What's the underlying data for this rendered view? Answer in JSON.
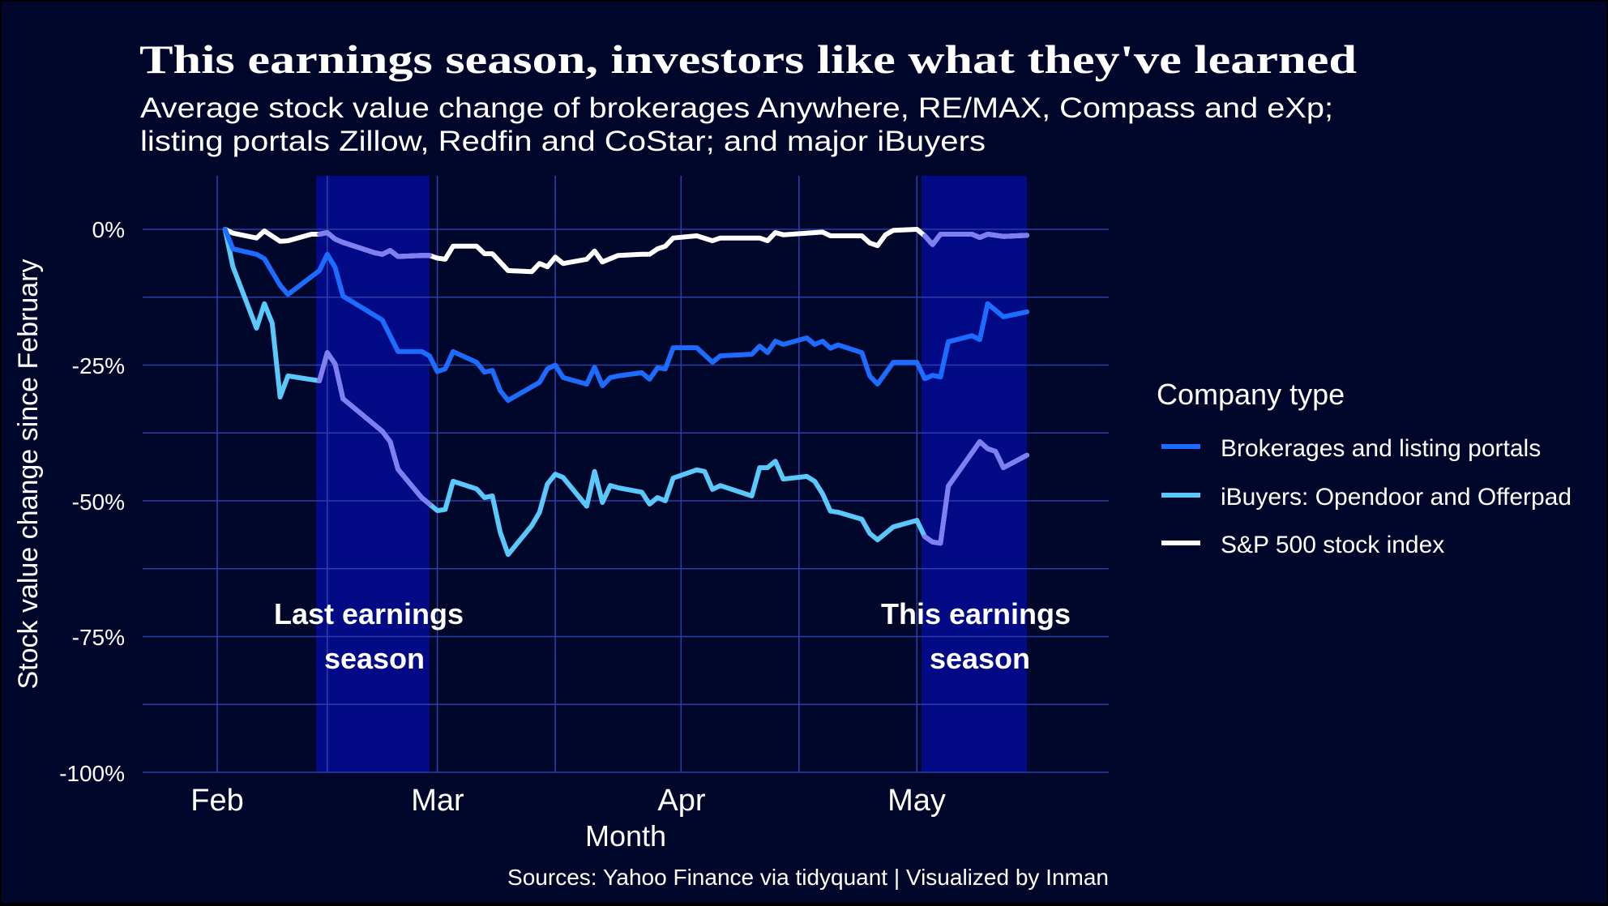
{
  "header": {
    "title": "This earnings season, investors like what they've learned",
    "subtitle_line1": "Average stock value change of brokerages Anywhere, RE/MAX, Compass and eXp;",
    "subtitle_line2": "listing portals Zillow, Redfin and CoStar; and major iBuyers"
  },
  "axes": {
    "y_title": "Stock value change since February",
    "x_title": "Month",
    "y_ticks": [
      "0%",
      "-25%",
      "-50%",
      "-75%",
      "-100%"
    ],
    "x_ticks": [
      "Feb",
      "Mar",
      "Apr",
      "May"
    ]
  },
  "annotations": {
    "last_line1": "Last earnings",
    "last_line2": "season",
    "this_line1": "This earnings",
    "this_line2": "season"
  },
  "legend": {
    "title": "Company type",
    "items": [
      {
        "label": "Brokerages and listing portals",
        "color": "#1e6cff"
      },
      {
        "label": "iBuyers: Opendoor and Offerpad",
        "color": "#5ac8fa"
      },
      {
        "label": "S&P 500 stock index",
        "color": "#ffffff"
      }
    ]
  },
  "caption": "Sources: Yahoo Finance via tidyquant | Visualized by Inman",
  "colors": {
    "background": "#01062b",
    "band": "#020a85",
    "grid": "#2a3ea6",
    "in_band_overlay": "#7f7ff0",
    "brokerages": "#1e6cff",
    "ibuyers": "#5ac8fa",
    "sp500": "#ffffff"
  },
  "chart_data": {
    "type": "line",
    "title": "This earnings season, investors like what they've learned",
    "subtitle": "Average stock value change of brokerages Anywhere, RE/MAX, Compass and eXp; listing portals Zillow, Redfin and CoStar; and major iBuyers",
    "xlabel": "Month",
    "ylabel": "Stock value change since February",
    "x_ticks": [
      "Feb",
      "Mar",
      "Apr",
      "May"
    ],
    "y_ticks": [
      0,
      -25,
      -50,
      -75,
      -100
    ],
    "ylim": [
      -100,
      10
    ],
    "y_unit": "%",
    "grid": true,
    "legend_title": "Company type",
    "legend_position": "right",
    "shaded_periods": [
      {
        "label": "Last earnings season",
        "start": "Feb 14",
        "end": "Feb 28"
      },
      {
        "label": "This earnings season",
        "start": "May 2",
        "end": "May 15"
      }
    ],
    "series": [
      {
        "name": "Brokerages and listing portals",
        "x": [
          "Feb 2",
          "Feb 3",
          "Feb 6",
          "Feb 7",
          "Feb 9",
          "Feb 10",
          "Feb 14",
          "Feb 15",
          "Feb 16",
          "Feb 17",
          "Feb 22",
          "Feb 24",
          "Feb 27",
          "Feb 28",
          "Mar 1",
          "Mar 2",
          "Mar 3",
          "Mar 6",
          "Mar 7",
          "Mar 8",
          "Mar 9",
          "Mar 10",
          "Mar 14",
          "Mar 15",
          "Mar 16",
          "Mar 17",
          "Mar 20",
          "Mar 21",
          "Mar 22",
          "Mar 23",
          "Mar 24",
          "Mar 27",
          "Mar 28",
          "Mar 29",
          "Mar 30",
          "Mar 31",
          "Apr 3",
          "Apr 5",
          "Apr 6",
          "Apr 10",
          "Apr 11",
          "Apr 12",
          "Apr 13",
          "Apr 14",
          "Apr 17",
          "Apr 18",
          "Apr 19",
          "Apr 20",
          "Apr 21",
          "Apr 24",
          "Apr 25",
          "Apr 26",
          "Apr 28",
          "May 1",
          "May 2",
          "May 3",
          "May 4",
          "May 5",
          "May 8",
          "May 9",
          "May 10",
          "May 12",
          "May 15"
        ],
        "values": [
          0,
          -3.6,
          -4.6,
          -5.4,
          -10.3,
          -12,
          -7.6,
          -4.6,
          -7,
          -12.3,
          -16.7,
          -22.5,
          -22.5,
          -23.3,
          -26.2,
          -25.7,
          -22.5,
          -24.5,
          -26.3,
          -26,
          -29.7,
          -31.5,
          -28.2,
          -25.7,
          -25,
          -27.3,
          -28.5,
          -25.4,
          -28.8,
          -27.3,
          -27,
          -26.4,
          -27.6,
          -25.5,
          -25.7,
          -21.8,
          -21.8,
          -24.5,
          -23.3,
          -23,
          -21.5,
          -22.7,
          -20.6,
          -21.2,
          -20,
          -21.2,
          -20.6,
          -21.9,
          -21.3,
          -22.7,
          -27,
          -28.5,
          -24.5,
          -24.5,
          -27.5,
          -26.9,
          -27.2,
          -20.7,
          -19.6,
          -20.3,
          -13.7,
          -16.1,
          -15.2
        ]
      },
      {
        "name": "iBuyers: Opendoor and Offerpad",
        "x": [
          "Feb 2",
          "Feb 3",
          "Feb 6",
          "Feb 7",
          "Feb 8",
          "Feb 9",
          "Feb 10",
          "Feb 14",
          "Feb 15",
          "Feb 16",
          "Feb 17",
          "Feb 22",
          "Feb 23",
          "Feb 24",
          "Feb 27",
          "Feb 28",
          "Mar 1",
          "Mar 2",
          "Mar 3",
          "Mar 6",
          "Mar 7",
          "Mar 8",
          "Mar 9",
          "Mar 10",
          "Mar 13",
          "Mar 14",
          "Mar 15",
          "Mar 16",
          "Mar 17",
          "Mar 20",
          "Mar 21",
          "Mar 22",
          "Mar 23",
          "Mar 24",
          "Mar 27",
          "Mar 28",
          "Mar 29",
          "Mar 30",
          "Mar 31",
          "Apr 3",
          "Apr 4",
          "Apr 5",
          "Apr 6",
          "Apr 10",
          "Apr 11",
          "Apr 12",
          "Apr 13",
          "Apr 14",
          "Apr 17",
          "Apr 18",
          "Apr 19",
          "Apr 20",
          "Apr 21",
          "Apr 24",
          "Apr 25",
          "Apr 26",
          "Apr 28",
          "May 1",
          "May 2",
          "May 3",
          "May 4",
          "May 5",
          "May 9",
          "May 10",
          "May 11",
          "May 12",
          "May 15"
        ],
        "values": [
          0,
          -6.9,
          -18.2,
          -13.7,
          -17.3,
          -30.9,
          -27,
          -27.9,
          -22.7,
          -24.8,
          -31.2,
          -37.2,
          -39.1,
          -44.2,
          -49.4,
          -50.6,
          -51.8,
          -51.6,
          -46.4,
          -47.8,
          -49.4,
          -49.1,
          -55.8,
          -59.9,
          -54.6,
          -52.1,
          -46.9,
          -45.1,
          -45.7,
          -51,
          -44.6,
          -50.3,
          -47.2,
          -47.6,
          -48.4,
          -50.6,
          -49.4,
          -50,
          -45.8,
          -44.3,
          -44.6,
          -47.9,
          -47.2,
          -49.1,
          -43.9,
          -43.9,
          -42.7,
          -46,
          -45.5,
          -46.4,
          -48.7,
          -51.9,
          -52.1,
          -53.4,
          -56,
          -57.2,
          -54.8,
          -53.6,
          -56.6,
          -57.6,
          -57.8,
          -47.3,
          -39.1,
          -40.4,
          -40.9,
          -43.9,
          -41.6
        ]
      },
      {
        "name": "S&P 500 stock index",
        "x": [
          "Feb 2",
          "Feb 3",
          "Feb 6",
          "Feb 7",
          "Feb 9",
          "Feb 10",
          "Feb 13",
          "Feb 14",
          "Feb 15",
          "Feb 16",
          "Feb 17",
          "Feb 21",
          "Feb 22",
          "Feb 23",
          "Feb 24",
          "Feb 27",
          "Feb 28",
          "Mar 1",
          "Mar 2",
          "Mar 3",
          "Mar 6",
          "Mar 7",
          "Mar 8",
          "Mar 10",
          "Mar 13",
          "Mar 14",
          "Mar 15",
          "Mar 16",
          "Mar 17",
          "Mar 20",
          "Mar 21",
          "Mar 22",
          "Mar 24",
          "Mar 27",
          "Mar 28",
          "Mar 29",
          "Mar 30",
          "Mar 31",
          "Apr 3",
          "Apr 5",
          "Apr 6",
          "Apr 11",
          "Apr 12",
          "Apr 13",
          "Apr 14",
          "Apr 19",
          "Apr 20",
          "Apr 24",
          "Apr 25",
          "Apr 26",
          "Apr 27",
          "Apr 28",
          "May 1",
          "May 2",
          "May 3",
          "May 4",
          "May 8",
          "May 9",
          "May 10",
          "May 12",
          "May 15"
        ],
        "values": [
          0,
          -0.7,
          -1.6,
          -0.3,
          -2.2,
          -2.1,
          -0.9,
          -0.9,
          -0.6,
          -1.8,
          -2.4,
          -4.3,
          -4.6,
          -3.9,
          -5,
          -4.8,
          -4.8,
          -5.3,
          -5.5,
          -3.1,
          -3.1,
          -4.5,
          -4.5,
          -7.6,
          -7.8,
          -6.3,
          -6.9,
          -5.1,
          -6.3,
          -5.5,
          -4,
          -6,
          -4.8,
          -4.6,
          -4.6,
          -3.6,
          -3.1,
          -1.6,
          -1.2,
          -2.1,
          -1.6,
          -1.6,
          -2.1,
          -0.6,
          -1,
          -0.5,
          -1.2,
          -1.2,
          -2.5,
          -3,
          -1,
          -0.2,
          0,
          -1.2,
          -2.8,
          -0.9,
          -0.9,
          -1.5,
          -0.9,
          -1.3,
          -1.1
        ]
      }
    ]
  }
}
